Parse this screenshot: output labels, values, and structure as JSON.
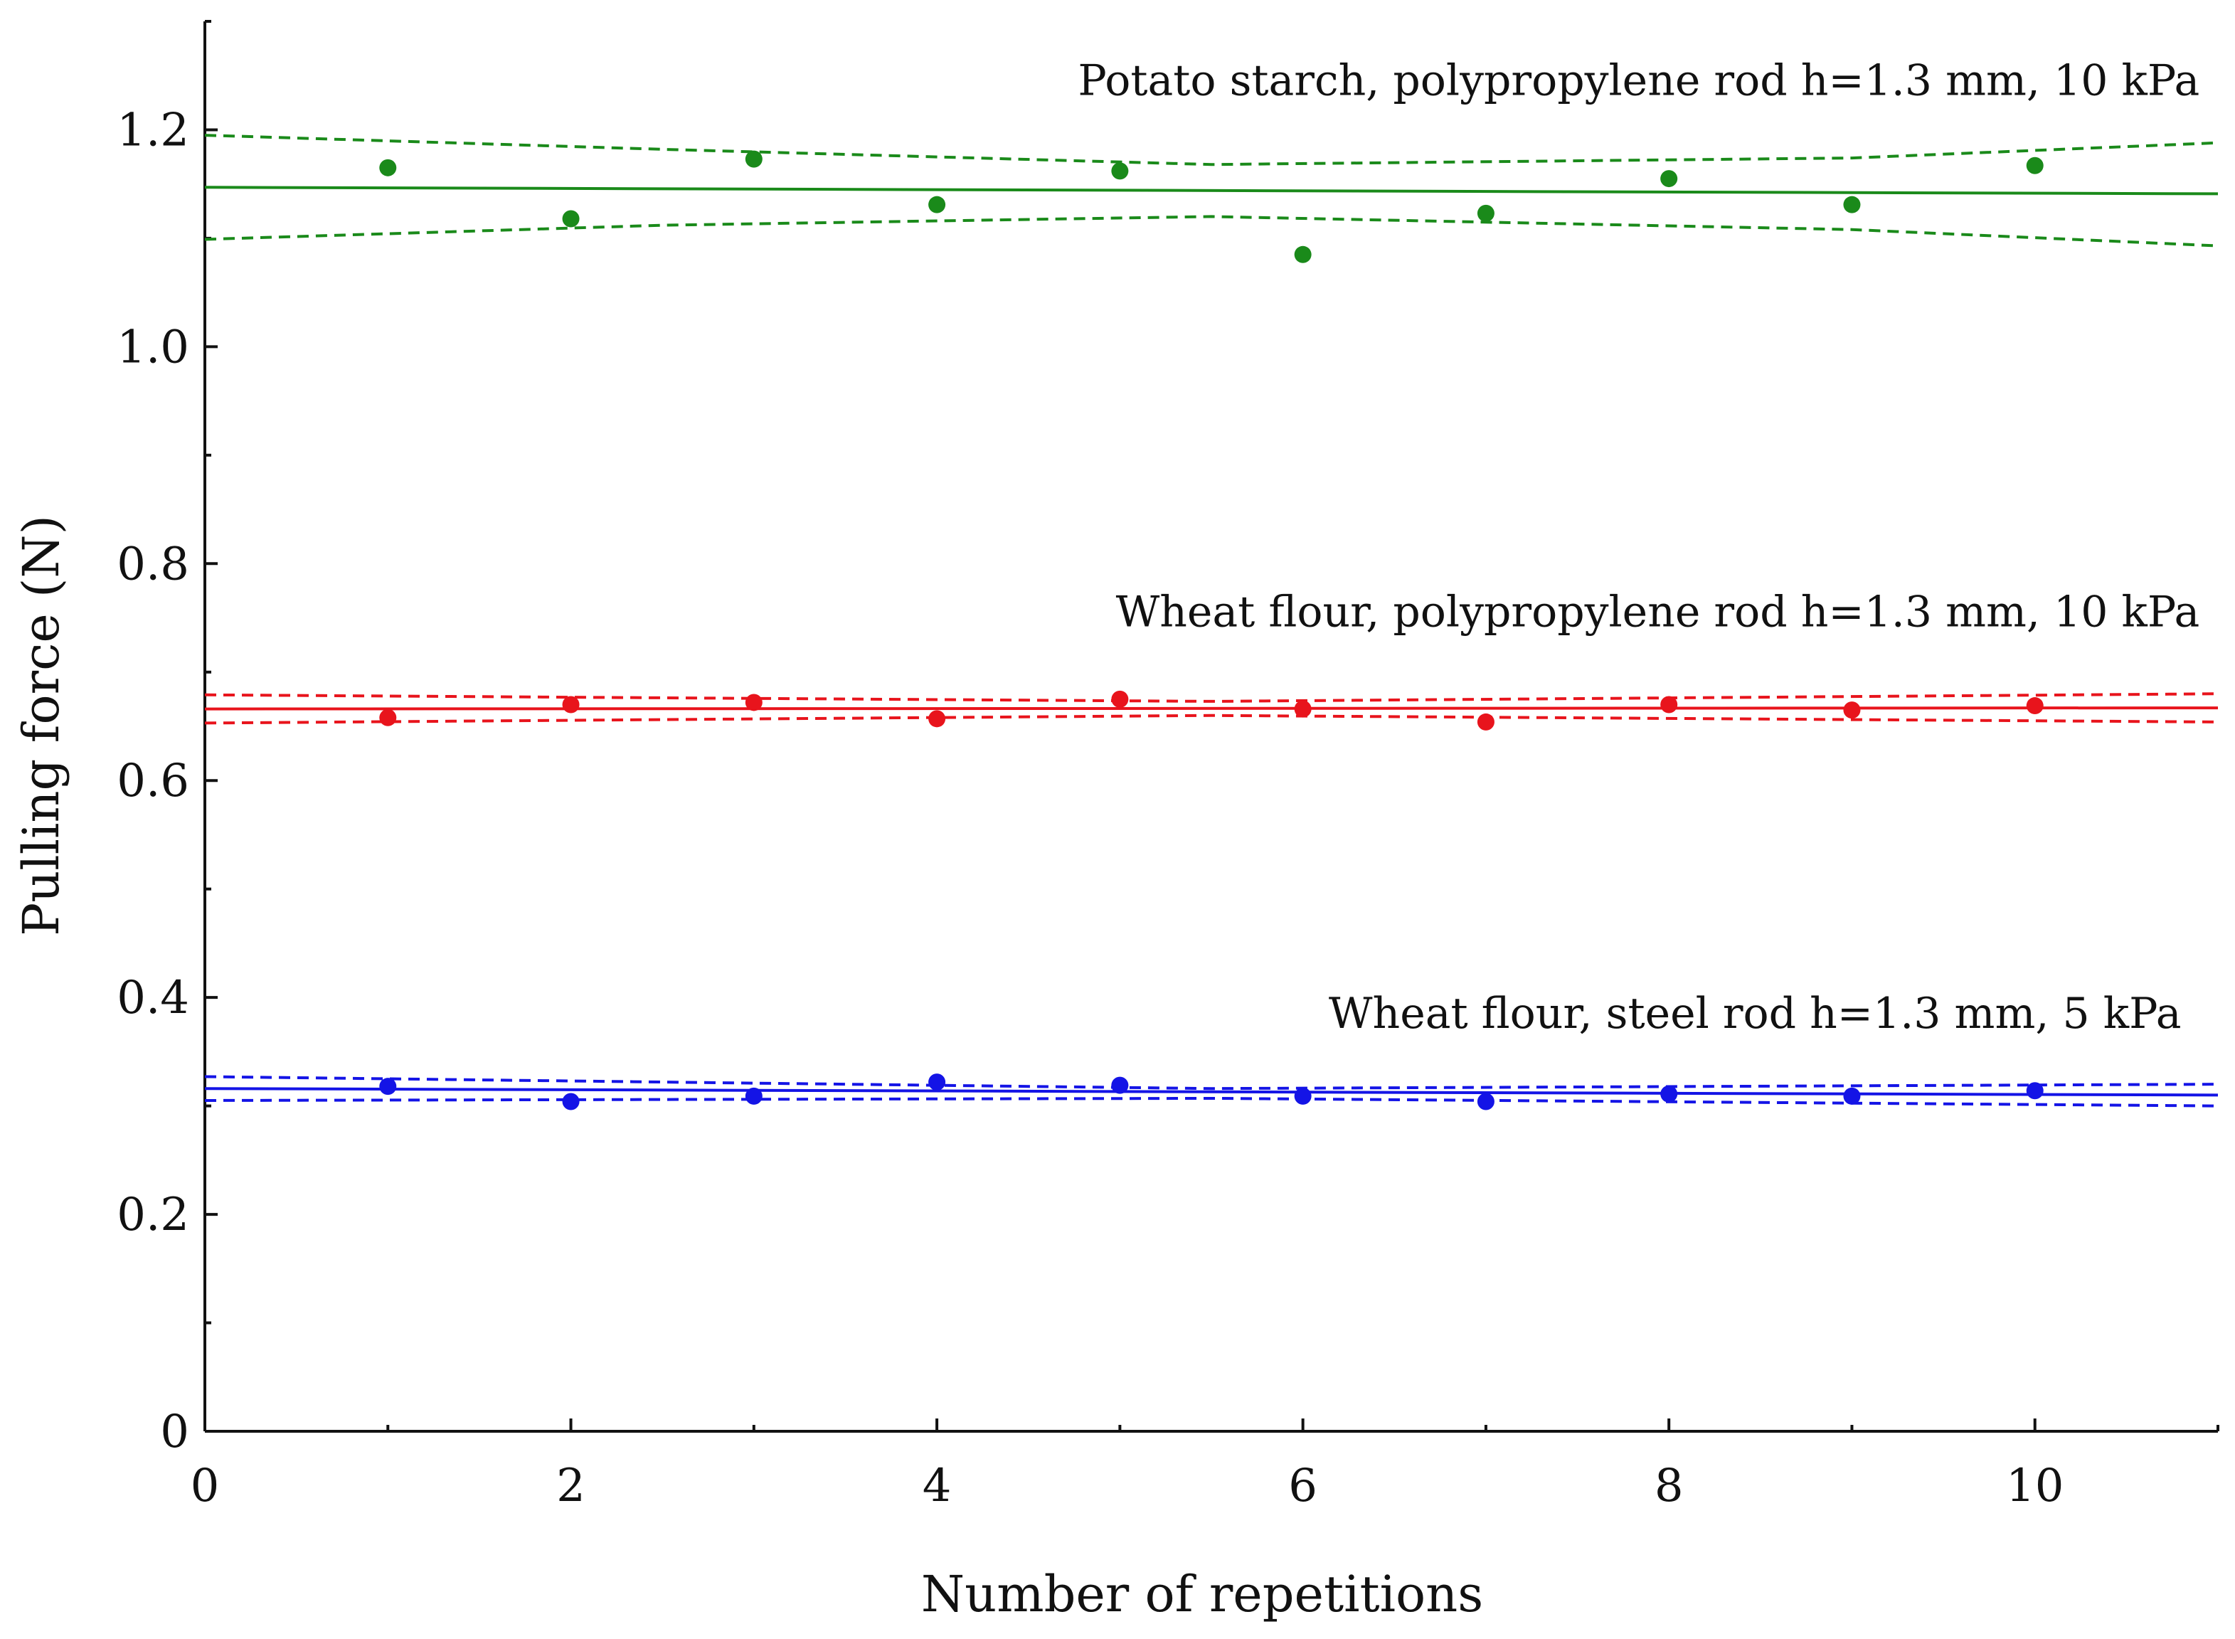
{
  "chart_data": {
    "type": "scatter",
    "title": "",
    "xlabel": "Number of repetitions",
    "ylabel": "Pulling force (N)",
    "xlim": [
      0,
      11
    ],
    "ylim": [
      0,
      1.3
    ],
    "x_ticks": [
      0,
      2,
      4,
      6,
      8,
      10
    ],
    "x_tick_labels": [
      "0",
      "2",
      "4",
      "6",
      "8",
      "10"
    ],
    "y_ticks": [
      0,
      0.2,
      0.4,
      0.6,
      0.8,
      1.0,
      1.2
    ],
    "y_tick_labels": [
      "0",
      "0.2",
      "0.4",
      "0.6",
      "0.8",
      "1.0",
      "1.2"
    ],
    "grid": false,
    "x": [
      1,
      2,
      3,
      4,
      5,
      6,
      7,
      8,
      9,
      10
    ],
    "series": [
      {
        "name": "Potato starch, polypropylene rod h=1.3 mm, 10 kPa",
        "color": "#1a8a1a",
        "values": [
          1.165,
          1.118,
          1.173,
          1.131,
          1.162,
          1.085,
          1.123,
          1.155,
          1.131,
          1.167
        ],
        "fit": {
          "x": [
            0,
            11
          ],
          "y": [
            1.147,
            1.141
          ]
        },
        "ci_upper": {
          "x": [
            0,
            2.5,
            5.5,
            9,
            11
          ],
          "y": [
            1.195,
            1.182,
            1.168,
            1.174,
            1.188
          ]
        },
        "ci_lower": {
          "x": [
            0,
            2.5,
            5.5,
            9,
            11
          ],
          "y": [
            1.099,
            1.112,
            1.12,
            1.108,
            1.093
          ]
        }
      },
      {
        "name": "Wheat flour, polypropylene rod h=1.3 mm, 10 kPa",
        "color": "#e8141c",
        "values": [
          0.658,
          0.67,
          0.672,
          0.657,
          0.675,
          0.666,
          0.654,
          0.67,
          0.665,
          0.669
        ],
        "fit": {
          "x": [
            0,
            11
          ],
          "y": [
            0.666,
            0.667
          ]
        },
        "ci_upper": {
          "x": [
            0,
            5.5,
            11
          ],
          "y": [
            0.679,
            0.673,
            0.68
          ]
        },
        "ci_lower": {
          "x": [
            0,
            5.5,
            11
          ],
          "y": [
            0.653,
            0.66,
            0.654
          ]
        }
      },
      {
        "name": "Wheat flour, steel rod h=1.3 mm, 5 kPa",
        "color": "#1414e6",
        "values": [
          0.318,
          0.304,
          0.309,
          0.322,
          0.319,
          0.309,
          0.304,
          0.311,
          0.309,
          0.314
        ],
        "fit": {
          "x": [
            0,
            11
          ],
          "y": [
            0.316,
            0.31
          ]
        },
        "ci_upper": {
          "x": [
            0,
            5.5,
            11
          ],
          "y": [
            0.327,
            0.316,
            0.32
          ]
        },
        "ci_lower": {
          "x": [
            0,
            5.5,
            11
          ],
          "y": [
            0.305,
            0.307,
            0.3
          ]
        }
      }
    ],
    "annotations": [
      {
        "text": "Potato starch, polypropylene rod h=1.3 mm, 10 kPa",
        "x": 10.9,
        "y": 1.232
      },
      {
        "text": "Wheat flour, polypropylene rod h=1.3 mm, 10 kPa",
        "x": 10.9,
        "y": 0.742
      },
      {
        "text": "Wheat flour, steel rod h=1.3 mm, 5 kPa",
        "x": 10.8,
        "y": 0.372
      }
    ]
  }
}
